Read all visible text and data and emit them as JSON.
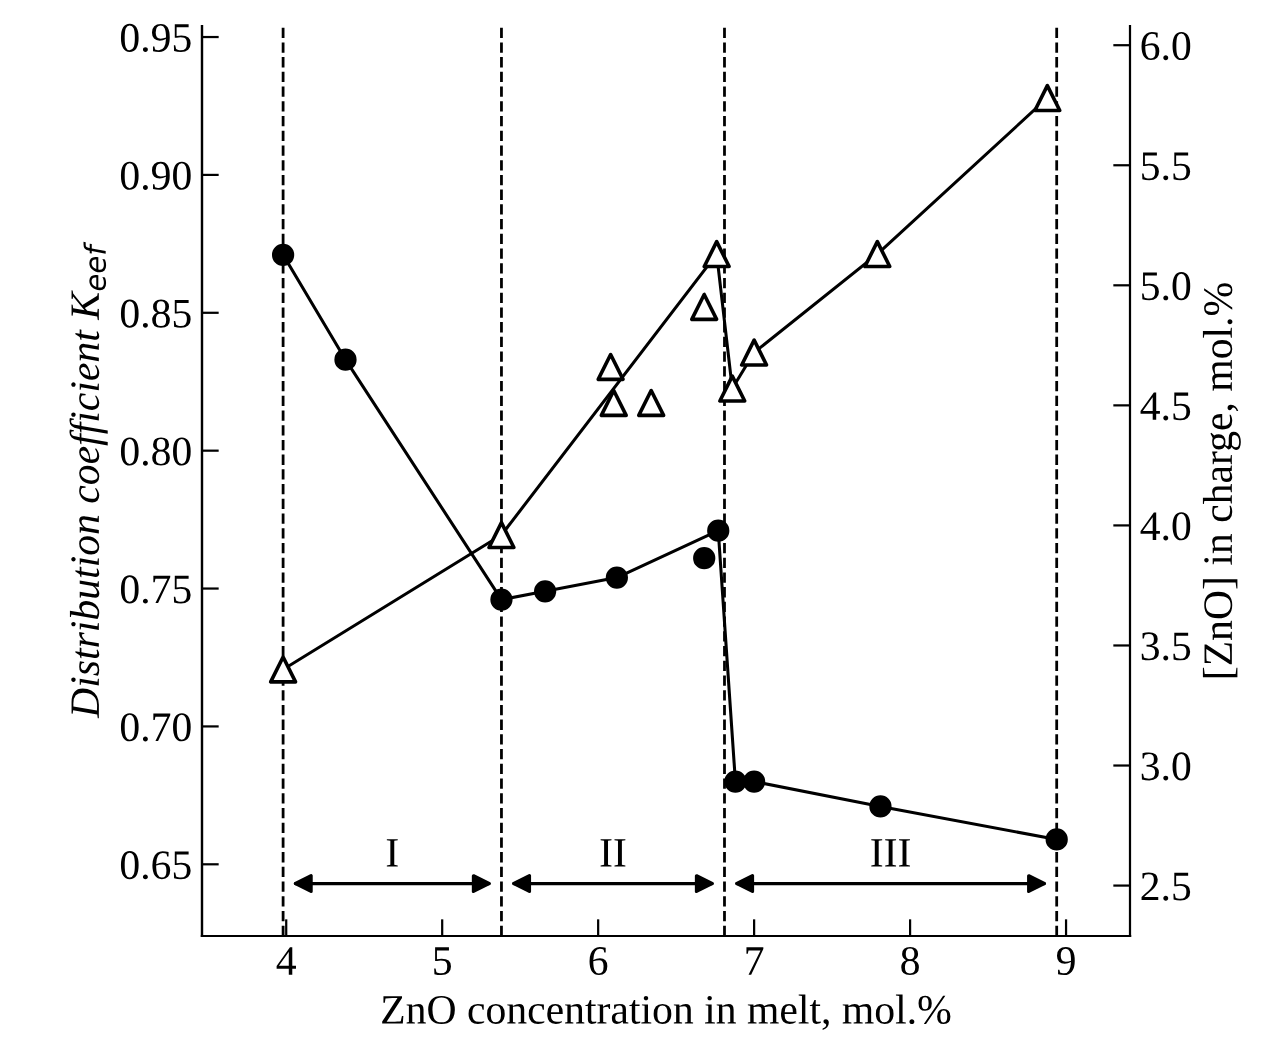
{
  "chart_data": {
    "type": "scatter",
    "xlabel": "ZnO concentration in melt, mol.%",
    "ylabel": "Distribution coefficient K$_{eef}$",
    "y2label": "[ZnO] in charge, mol.%",
    "xlim": [
      3.46,
      9.41
    ],
    "xticks": [
      4,
      5,
      6,
      7,
      8,
      9
    ],
    "ylim": [
      0.624,
      0.954
    ],
    "yticks": [
      0.65,
      {
        "value": 0.7,
        "label": "0.70"
      },
      0.75,
      {
        "value": 0.8,
        "label": "0.80"
      },
      0.85,
      {
        "value": 0.9,
        "label": "0.90"
      },
      0.95
    ],
    "y2lim": [
      2.29,
      6.08
    ],
    "y2ticks": [
      2.5,
      {
        "value": 3,
        "label": "3.0"
      },
      3.5,
      {
        "value": 4,
        "label": "4.0"
      },
      4.5,
      {
        "value": 5,
        "label": "5.0"
      },
      5.5,
      {
        "value": 6,
        "label": "6.0"
      }
    ],
    "grid": false,
    "legend": false,
    "series": [
      {
        "marker": "circle",
        "color": "#000000",
        "x": [
          3.98,
          4.38,
          5.38,
          5.66,
          6.12,
          6.68,
          6.77,
          6.88,
          7.0,
          7.81,
          8.94
        ],
        "values": [
          0.871,
          0.833,
          0.746,
          0.749,
          0.754,
          0.761,
          0.771,
          0.68,
          0.68,
          0.671,
          0.659
        ]
      },
      {
        "type": "line",
        "marker": "none",
        "color": "#000000",
        "x": [
          3.98,
          4.38,
          5.38,
          5.66,
          6.12,
          6.77,
          6.88,
          7.0,
          7.81,
          8.94
        ],
        "values": [
          0.871,
          0.833,
          0.746,
          0.749,
          0.754,
          0.771,
          0.68,
          0.68,
          0.671,
          0.659
        ]
      },
      {
        "marker": "triangle",
        "color": "#000000",
        "axis": "y2",
        "x": [
          3.98,
          5.38,
          6.08,
          6.1,
          6.34,
          6.68,
          6.76,
          6.86,
          7.0,
          7.79,
          8.88
        ],
        "values": [
          3.4,
          3.96,
          4.66,
          4.51,
          4.51,
          4.91,
          5.13,
          4.57,
          4.72,
          5.13,
          5.78
        ]
      },
      {
        "type": "line",
        "marker": "none",
        "color": "#000000",
        "axis": "y2",
        "x": [
          3.98,
          5.38,
          6.76,
          6.86,
          7.0,
          7.79,
          8.88
        ],
        "values": [
          3.4,
          3.96,
          5.13,
          4.57,
          4.72,
          5.13,
          5.78
        ]
      }
    ],
    "ref_lines": [
      {
        "axis": "x",
        "value": 3.98,
        "line_style": "dashed",
        "color": "#000000"
      },
      {
        "axis": "x",
        "value": 5.38,
        "line_style": "dashed",
        "color": "#000000"
      },
      {
        "axis": "x",
        "value": 6.81,
        "line_style": "dashed",
        "color": "#000000"
      },
      {
        "axis": "x",
        "value": 8.94,
        "line_style": "dashed",
        "color": "#000000"
      }
    ],
    "annotations": [
      "I",
      "II",
      "III"
    ]
  }
}
